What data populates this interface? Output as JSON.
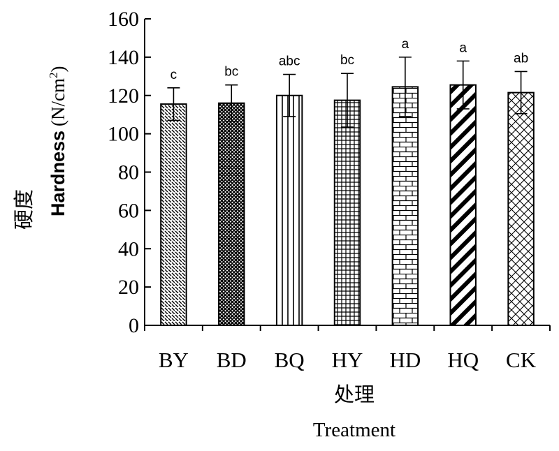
{
  "chart_data": {
    "type": "bar",
    "categories": [
      "BY",
      "BD",
      "BQ",
      "HY",
      "HD",
      "HQ",
      "CK"
    ],
    "values": [
      115.5,
      116,
      120,
      117.5,
      124.5,
      125.5,
      121.5
    ],
    "errors": [
      8.5,
      9.5,
      11,
      14,
      15.5,
      12.5,
      11
    ],
    "significance": [
      "c",
      "bc",
      "abc",
      "bc",
      "a",
      "a",
      "ab"
    ],
    "ylim": [
      0,
      160
    ],
    "yticks": [
      0,
      20,
      40,
      60,
      80,
      100,
      120,
      140,
      160
    ],
    "ylabel_cn": "硬度",
    "ylabel_en": "Hardness",
    "ylabel_unit": "(N/cm",
    "ylabel_unit_sup": "2",
    "ylabel_unit_close": ")",
    "xlabel_cn": "处理",
    "xlabel_en": "Treatment",
    "patterns": [
      "diag-dashes",
      "crosshatch-dense",
      "vertical-lines",
      "grid",
      "brick",
      "diag-thick",
      "crosshatch-open"
    ],
    "grid": false,
    "legend": "none"
  }
}
